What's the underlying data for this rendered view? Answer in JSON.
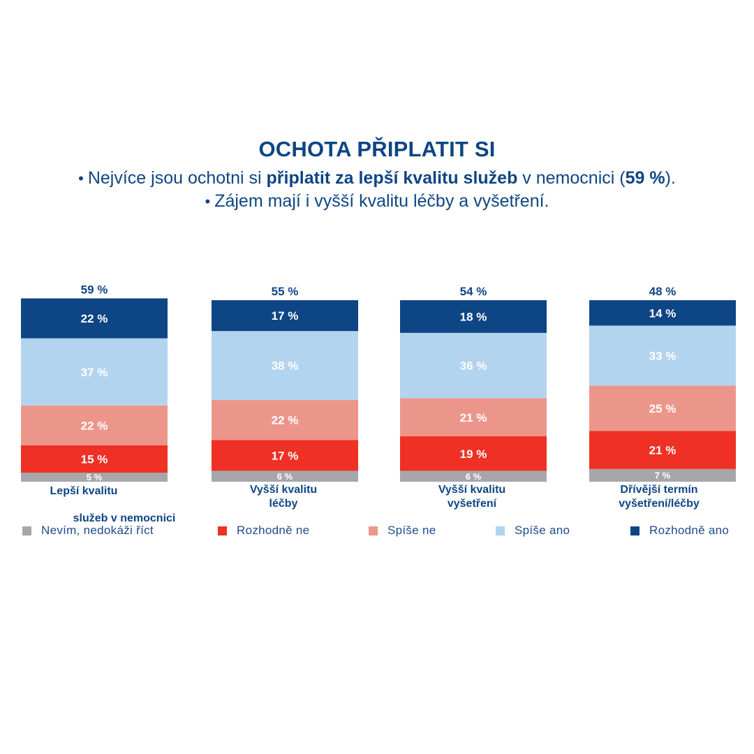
{
  "header": {
    "title": "OCHOTA PŘIPLATIT SI",
    "bullet1_pre": "Nejvíce jsou ochotni si ",
    "bullet1_bold": "připlatit za lepší kvalitu služeb",
    "bullet1_mid": " v nemocnici (",
    "bullet1_bold2": "59 %",
    "bullet1_post": ").",
    "bullet2": "Zájem mají i vyšší kvalitu léčby a vyšetření.",
    "bullet_glyph": "•"
  },
  "colors": {
    "navy": "#0e4584",
    "nevim": "#a6a7aa",
    "rozhodne_ne": "#ee3124",
    "spise_ne": "#ec968b",
    "spise_ano": "#b3d4ef",
    "rozhodne_ano": "#0e4584"
  },
  "legend": [
    {
      "label": "Nevím, nedokáži říct",
      "color": "#a6a7aa"
    },
    {
      "label": "Rozhodně ne",
      "color": "#ee3124"
    },
    {
      "label": "Spíše ne",
      "color": "#ec968b"
    },
    {
      "label": "Spíše ano",
      "color": "#b3d4ef"
    },
    {
      "label": "Rozhodně ano",
      "color": "#0e4584"
    }
  ],
  "chart_data": {
    "type": "bar",
    "stacked": true,
    "categories": [
      {
        "label_lines": [
          "Lepší kvalitu",
          "služeb v nemocnici"
        ],
        "total_label": "59  %"
      },
      {
        "label_lines": [
          "Vyšší kvalitu",
          "léčby"
        ],
        "total_label": "55 %"
      },
      {
        "label_lines": [
          "Vyšší kvalitu",
          "vyšetření"
        ],
        "total_label": "54 %"
      },
      {
        "label_lines": [
          "Dřívější termín",
          "vyšetření/léčby"
        ],
        "total_label": "48  %"
      }
    ],
    "series": [
      {
        "name": "Nevím, nedokáži říct",
        "values": [
          5,
          6,
          6,
          7
        ],
        "labels": [
          "5 %",
          "6 %",
          "6 %",
          "7 %"
        ]
      },
      {
        "name": "Rozhodně ne",
        "values": [
          15,
          17,
          19,
          21
        ],
        "labels": [
          "15 %",
          "17 %",
          "19 %",
          "21 %"
        ]
      },
      {
        "name": "Spíše ne",
        "values": [
          22,
          22,
          21,
          25
        ],
        "labels": [
          "22 %",
          "22 %",
          "21 %",
          "25 %"
        ]
      },
      {
        "name": "Spíše ano",
        "values": [
          37,
          38,
          36,
          33
        ],
        "labels": [
          "37 %",
          "38 %",
          "36 %",
          "33 %"
        ]
      },
      {
        "name": "Rozhodně ano",
        "values": [
          22,
          17,
          18,
          14
        ],
        "labels": [
          "22 %",
          "17 %",
          "18 %",
          "14 %"
        ]
      }
    ],
    "ylim": [
      0,
      100
    ],
    "unit": "%"
  }
}
